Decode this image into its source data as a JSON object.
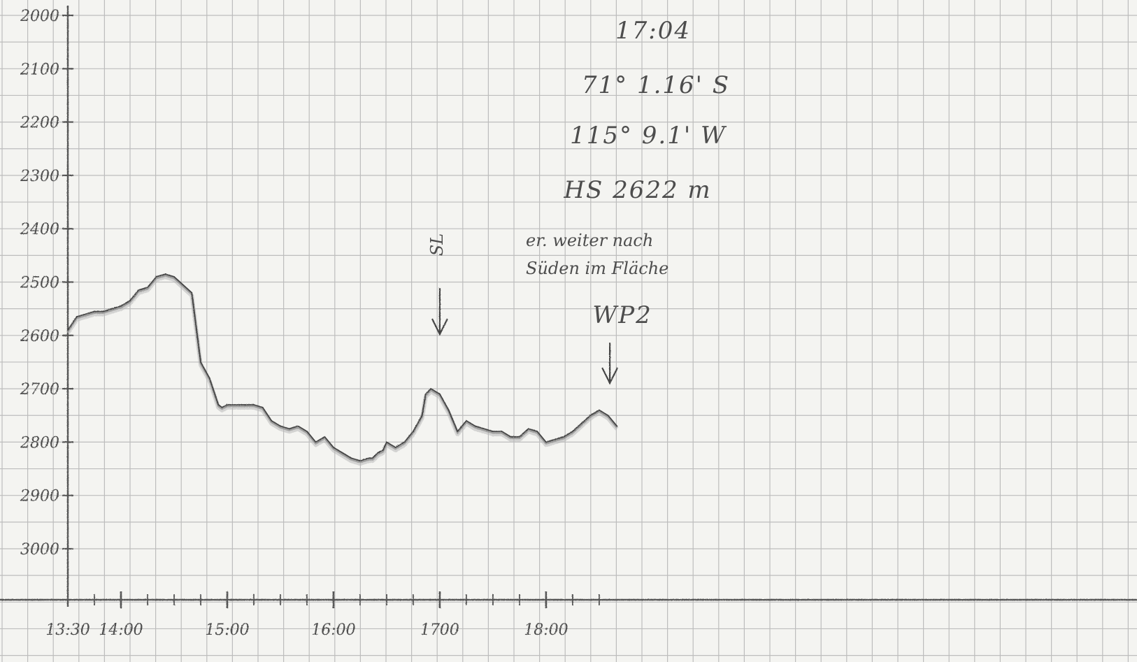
{
  "chart_data": {
    "type": "line",
    "title": "",
    "xlabel": "",
    "ylabel": "",
    "xlim": [
      "13:30",
      "18:40"
    ],
    "ylim": [
      2000,
      3000
    ],
    "y_inverted": true,
    "grid": true,
    "x_ticks": [
      "13:30",
      "14:00",
      "15:00",
      "16:00",
      "1700",
      "18:00"
    ],
    "y_ticks": [
      "2000",
      "2100",
      "2200",
      "2300",
      "2400",
      "2500",
      "2600",
      "2700",
      "2800",
      "2900",
      "3000"
    ],
    "annotations": {
      "lines": [
        "17:04",
        "71° 1.16' S",
        "115° 9.1' W",
        "HS 2622 m"
      ],
      "note": [
        "er. weiter nach",
        "Süden im Fläche"
      ],
      "markers": [
        {
          "label": "SL",
          "time": "17:00"
        },
        {
          "label": "WP2",
          "time": "18:36"
        }
      ]
    },
    "series": [
      {
        "x": [
          "13:30",
          "13:35",
          "13:40",
          "13:45",
          "13:50",
          "13:55",
          "14:00",
          "14:05",
          "14:10",
          "14:15",
          "14:20",
          "14:25",
          "14:30",
          "14:35",
          "14:40",
          "14:45",
          "14:50",
          "14:55",
          "14:57",
          "15:00",
          "15:05",
          "15:10",
          "15:15",
          "15:20",
          "15:25",
          "15:30",
          "15:35",
          "15:40",
          "15:45",
          "15:50",
          "15:55",
          "16:00",
          "16:05",
          "16:10",
          "16:15",
          "16:20",
          "16:22",
          "16:25",
          "16:28",
          "16:30",
          "16:35",
          "16:40",
          "16:45",
          "16:50",
          "16:52",
          "16:55",
          "17:00",
          "17:05",
          "17:10",
          "17:15",
          "17:20",
          "17:25",
          "17:30",
          "17:35",
          "17:40",
          "17:45",
          "17:50",
          "17:55",
          "18:00",
          "18:05",
          "18:10",
          "18:15",
          "18:20",
          "18:25",
          "18:30",
          "18:35",
          "18:40"
        ],
        "y": [
          2590,
          2565,
          2560,
          2555,
          2555,
          2550,
          2545,
          2535,
          2515,
          2510,
          2490,
          2485,
          2490,
          2505,
          2520,
          2650,
          2680,
          2730,
          2735,
          2730,
          2730,
          2730,
          2730,
          2735,
          2760,
          2770,
          2775,
          2770,
          2780,
          2800,
          2790,
          2810,
          2820,
          2830,
          2835,
          2830,
          2830,
          2820,
          2815,
          2800,
          2810,
          2800,
          2780,
          2750,
          2710,
          2700,
          2710,
          2740,
          2780,
          2760,
          2770,
          2775,
          2780,
          2780,
          2790,
          2790,
          2775,
          2780,
          2800,
          2795,
          2790,
          2780,
          2765,
          2750,
          2740,
          2750,
          2770
        ]
      }
    ]
  }
}
